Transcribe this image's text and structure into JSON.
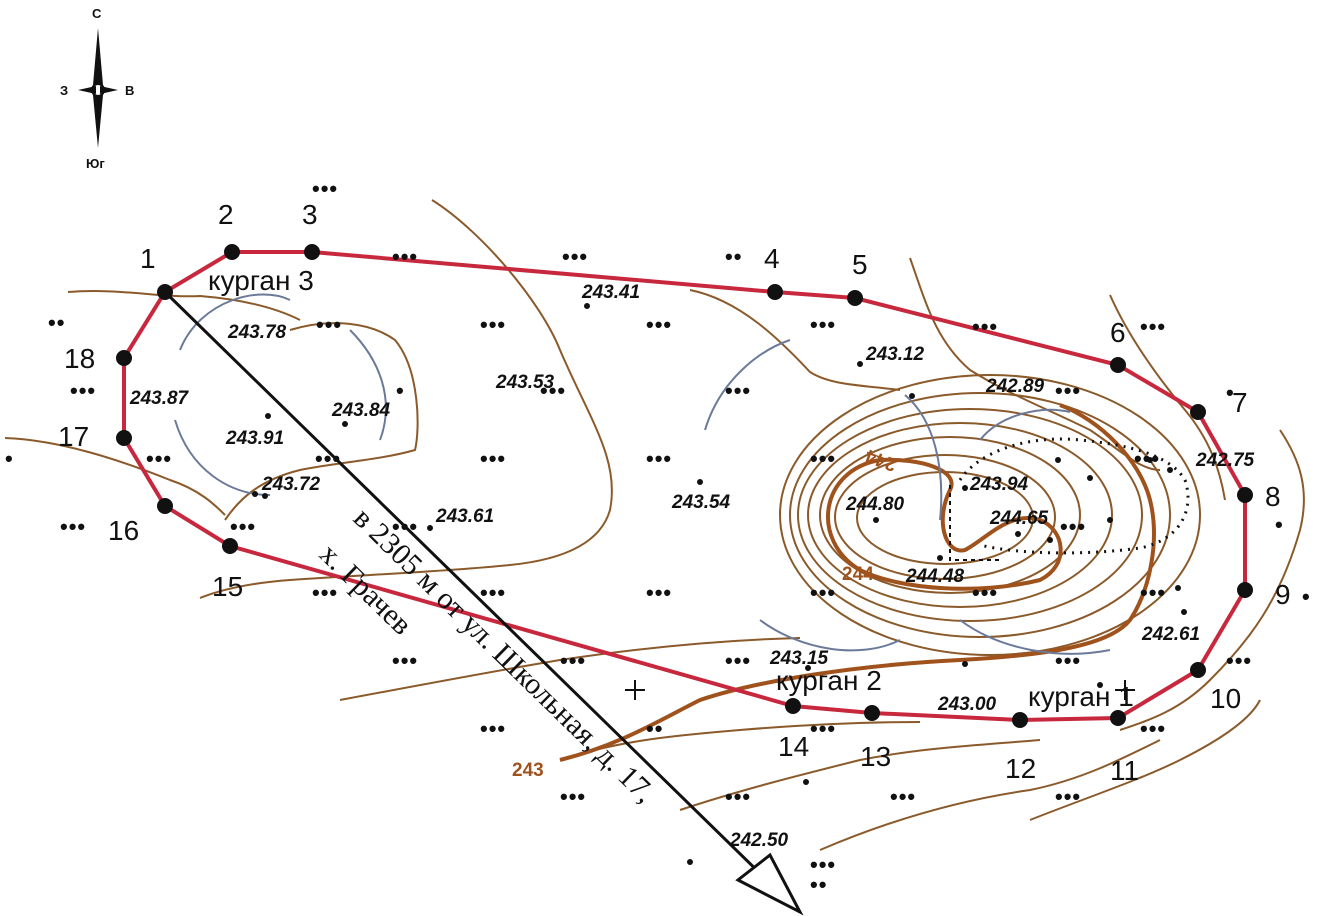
{
  "compass": {
    "north": "С",
    "south": "Юг",
    "west": "З",
    "east": "В"
  },
  "boundary": {
    "line_color": "#c8283e",
    "points": [
      "1",
      "2",
      "3",
      "4",
      "5",
      "6",
      "7",
      "8",
      "9",
      "10",
      "11",
      "12",
      "13",
      "14",
      "15",
      "16",
      "17",
      "18"
    ]
  },
  "kurgans": [
    "курган 1",
    "курган 2",
    "курган 3"
  ],
  "elevations": [
    "243.41",
    "243.78",
    "243.53",
    "243.12",
    "242.89",
    "243.87",
    "243.84",
    "243.91",
    "243.72",
    "242.75",
    "243.61",
    "243.54",
    "244.80",
    "243.94",
    "244.65",
    "244.48",
    "242.61",
    "243.15",
    "243.00",
    "242.50"
  ],
  "contour_labels": {
    "c244a": "244",
    "c244b": "244",
    "c243": "243"
  },
  "reference": {
    "line1": "в 2305 м от ул. Школьная, д. 17,",
    "line2": "х. Грачев"
  },
  "colors": {
    "contour": "#8b5a2b",
    "contour_bold": "#a0521d",
    "kurgan_arc": "#6b7a99",
    "boundary": "#c8283e"
  }
}
